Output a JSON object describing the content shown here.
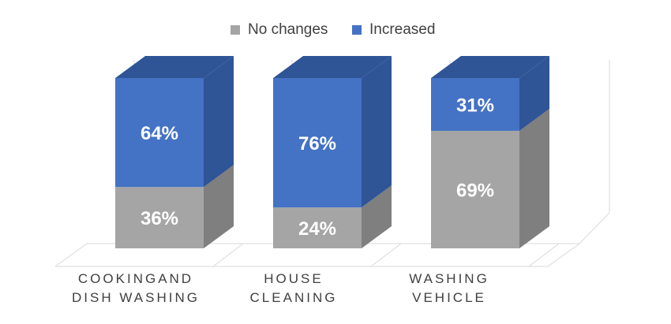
{
  "chart_data": {
    "type": "bar",
    "stacked": true,
    "three_d": true,
    "categories": [
      [
        "COOKINGAND",
        "DISH WASHING"
      ],
      [
        "HOUSE",
        "CLEANING"
      ],
      [
        "WASHING",
        "VEHICLE"
      ]
    ],
    "series": [
      {
        "name": "No changes",
        "values": [
          36,
          24,
          69
        ],
        "labels": [
          "36%",
          "24%",
          "69%"
        ],
        "color": "#A5A5A5",
        "side_color": "#7F7F7F",
        "top_color": "#BFBFBF"
      },
      {
        "name": "Increased",
        "values": [
          64,
          76,
          31
        ],
        "labels": [
          "64%",
          "76%",
          "31%"
        ],
        "color": "#4472C4",
        "side_color": "#2F5597",
        "top_color": "#2F5597"
      }
    ],
    "ylim": [
      0,
      100
    ],
    "legend": "top-center",
    "grid": false,
    "title": "",
    "xlabel": "",
    "ylabel": ""
  }
}
